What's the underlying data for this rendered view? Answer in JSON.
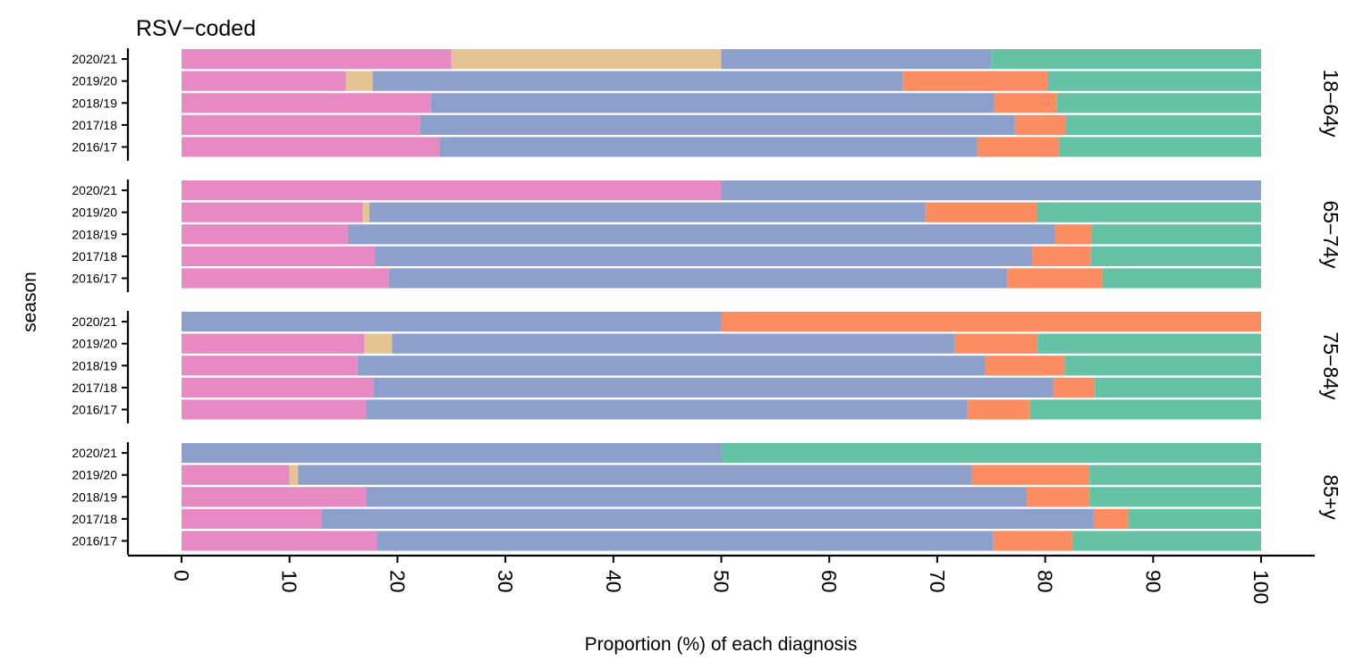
{
  "chart_data": {
    "type": "bar",
    "orientation": "horizontal",
    "stacked": true,
    "title": "RSV−coded",
    "xlabel": "Proportion (%) of each diagnosis",
    "ylabel": "season",
    "xlim": [
      0,
      100
    ],
    "xticks": [
      "0",
      "10",
      "20",
      "30",
      "40",
      "50",
      "60",
      "70",
      "80",
      "90",
      "100"
    ],
    "categories": [
      "2020/21",
      "2019/20",
      "2018/19",
      "2017/18",
      "2016/17"
    ],
    "legend": "none",
    "grid": false,
    "colors": [
      "#E78AC3",
      "#E5C494",
      "#8DA0CB",
      "#FC8D62",
      "#66C2A5"
    ],
    "panels": [
      {
        "label": "18−64y",
        "rows": [
          {
            "season": "2020/21",
            "segments": [
              25,
              25,
              25,
              0,
              25
            ]
          },
          {
            "season": "2019/20",
            "segments": [
              15.2,
              2.5,
              49.1,
              13.4,
              19.8
            ]
          },
          {
            "season": "2018/19",
            "segments": [
              23.1,
              0,
              52.2,
              5.8,
              18.9
            ]
          },
          {
            "season": "2017/18",
            "segments": [
              22.1,
              0,
              55.1,
              4.7,
              18.1
            ]
          },
          {
            "season": "2016/17",
            "segments": [
              23.9,
              0,
              49.8,
              7.6,
              18.7
            ]
          }
        ]
      },
      {
        "label": "65−74y",
        "rows": [
          {
            "season": "2020/21",
            "segments": [
              50,
              0,
              50,
              0,
              0
            ]
          },
          {
            "season": "2019/20",
            "segments": [
              16.8,
              0.6,
              51.5,
              10.3,
              20.8
            ]
          },
          {
            "season": "2018/19",
            "segments": [
              15.4,
              0,
              65.5,
              3.4,
              15.7
            ]
          },
          {
            "season": "2017/18",
            "segments": [
              17.9,
              0,
              60.9,
              5.4,
              15.8
            ]
          },
          {
            "season": "2016/17",
            "segments": [
              19.2,
              0,
              57.3,
              8.8,
              14.7
            ]
          }
        ]
      },
      {
        "label": "75−84y",
        "rows": [
          {
            "season": "2020/21",
            "segments": [
              0,
              0,
              50,
              50,
              0
            ]
          },
          {
            "season": "2019/20",
            "segments": [
              16.9,
              2.6,
              52.1,
              7.7,
              20.7
            ]
          },
          {
            "season": "2018/19",
            "segments": [
              16.3,
              0,
              58.1,
              7.4,
              18.2
            ]
          },
          {
            "season": "2017/18",
            "segments": [
              17.8,
              0,
              62.9,
              3.9,
              15.4
            ]
          },
          {
            "season": "2016/17",
            "segments": [
              17.1,
              0,
              55.7,
              5.8,
              21.4
            ]
          }
        ]
      },
      {
        "label": "85+y",
        "rows": [
          {
            "season": "2020/21",
            "segments": [
              0,
              0,
              50,
              0,
              50
            ]
          },
          {
            "season": "2019/20",
            "segments": [
              10,
              0.8,
              62.4,
              10.9,
              15.9
            ]
          },
          {
            "season": "2018/19",
            "segments": [
              17.1,
              0,
              61.2,
              5.8,
              15.9
            ]
          },
          {
            "season": "2017/18",
            "segments": [
              13,
              0,
              71.5,
              3.2,
              12.3
            ]
          },
          {
            "season": "2016/17",
            "segments": [
              18.1,
              0,
              57.1,
              7.3,
              17.5
            ]
          }
        ]
      }
    ]
  }
}
